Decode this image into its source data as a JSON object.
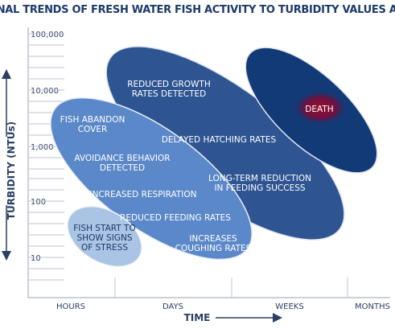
{
  "title": "RELATIONAL TRENDS OF FRESH WATER FISH ACTIVITY TO TURBIDITY VALUES AND TIME",
  "y_axis": {
    "label": "TURBIDITY (NTUs)",
    "ticks": [
      "100,000",
      "10,000",
      "1,000",
      "100",
      "10"
    ]
  },
  "x_axis": {
    "label": "TIME",
    "ticks": [
      "HOURS",
      "DAYS",
      "WEEKS",
      "MONTHS"
    ]
  },
  "regions": [
    {
      "lines": [
        [
          "FISH START TO",
          "SHOW SIGNS",
          "OF STRESS"
        ]
      ]
    },
    {
      "lines": [
        [
          "FISH ABANDON",
          "COVER"
        ],
        [
          "AVOIDANCE BEHAVIOR",
          "DETECTED"
        ],
        [
          "INCREASED RESPIRATION"
        ],
        [
          "REDUCED FEEDING RATES"
        ],
        [
          "INCREASES",
          "COUGHING RATES"
        ]
      ]
    },
    {
      "lines": [
        [
          "REDUCED GROWTH",
          "RATES DETECTED"
        ],
        [
          "DELAYED HATCHING RATES"
        ],
        [
          "LONG-TERM REDUCTION",
          "IN FEEDING SUCCESS"
        ]
      ]
    },
    {
      "lines": [
        [
          "DEATH"
        ]
      ]
    }
  ]
}
